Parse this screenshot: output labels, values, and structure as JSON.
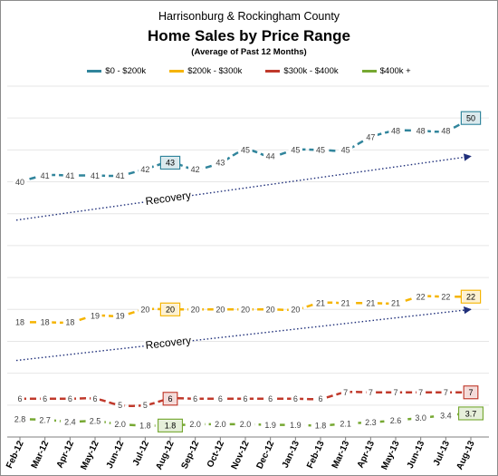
{
  "chart_data": {
    "type": "line",
    "supertitle": "Harrisonburg & Rockingham County",
    "title": "Home Sales by Price Range",
    "subtitle": "(Average of Past 12 Months)",
    "legend_position": "top",
    "grid": "horizontal",
    "categories": [
      "Feb-12",
      "Mar-12",
      "Apr-12",
      "May-12",
      "Jun-12",
      "Jul-12",
      "Aug-12",
      "Sep-12",
      "Oct-12",
      "Nov-12",
      "Dec-12",
      "Jan-13",
      "Feb-13",
      "Mar-13",
      "Apr-13",
      "May-13",
      "Jun-13",
      "Jul-13",
      "Aug-13"
    ],
    "ylim": [
      0,
      55
    ],
    "series": [
      {
        "name": "$0 - $200k",
        "color": "#31859c",
        "values": [
          40,
          41,
          41,
          41,
          41,
          42,
          43,
          42,
          43,
          45,
          44,
          45,
          45,
          45,
          47,
          48,
          48,
          48,
          50
        ],
        "labels": [
          "40",
          "41",
          "41",
          "41",
          "41",
          "42",
          "43",
          "42",
          "43",
          "45",
          "44",
          "45",
          "45",
          "45",
          "47",
          "48",
          "48",
          "48",
          "50"
        ]
      },
      {
        "name": "$200k - $300k",
        "color": "#f5b400",
        "values": [
          18,
          18,
          18,
          19,
          19,
          20,
          20,
          20,
          20,
          20,
          20,
          20,
          21,
          21,
          21,
          21,
          22,
          22,
          22
        ],
        "labels": [
          "18",
          "18",
          "18",
          "19",
          "19",
          "20",
          "20",
          "20",
          "20",
          "20",
          "20",
          "20",
          "21",
          "21",
          "21",
          "21",
          "22",
          "22",
          "22"
        ]
      },
      {
        "name": "$300k - $400k",
        "color": "#c0392b",
        "values": [
          6,
          6,
          6,
          6,
          5,
          5,
          6,
          6,
          6,
          6,
          6,
          6,
          6,
          7,
          7,
          7,
          7,
          7,
          7
        ],
        "labels": [
          "6",
          "6",
          "6",
          "6",
          "5",
          "5",
          "6",
          "6",
          "6",
          "6",
          "6",
          "6",
          "6",
          "7",
          "7",
          "7",
          "7",
          "7",
          "7"
        ]
      },
      {
        "name": "$400k +",
        "color": "#76a832",
        "values": [
          2.8,
          2.7,
          2.4,
          2.5,
          2.0,
          1.8,
          1.8,
          2.0,
          2.0,
          2.0,
          1.9,
          1.9,
          1.8,
          2.1,
          2.3,
          2.6,
          3.0,
          3.4,
          3.7
        ],
        "labels": [
          "2.8",
          "2.7",
          "2.4",
          "2.5",
          "2.0",
          "1.8",
          "1.8",
          "2.0",
          "2.0",
          "2.0",
          "1.9",
          "1.9",
          "1.8",
          "2.1",
          "2.3",
          "2.6",
          "3.0",
          "3.4",
          "3.7"
        ]
      }
    ],
    "boxed_points": [
      {
        "series": 0,
        "index": 6
      },
      {
        "series": 0,
        "index": 18
      },
      {
        "series": 1,
        "index": 6
      },
      {
        "series": 1,
        "index": 18
      },
      {
        "series": 2,
        "index": 6
      },
      {
        "series": 2,
        "index": 18
      },
      {
        "series": 3,
        "index": 6
      },
      {
        "series": 3,
        "index": 18
      }
    ],
    "annotations": [
      {
        "text": "Recovery",
        "from": [
          0,
          34
        ],
        "to": [
          18,
          44
        ]
      },
      {
        "text": "Recovery",
        "from": [
          0,
          12
        ],
        "to": [
          18,
          20
        ]
      }
    ]
  }
}
